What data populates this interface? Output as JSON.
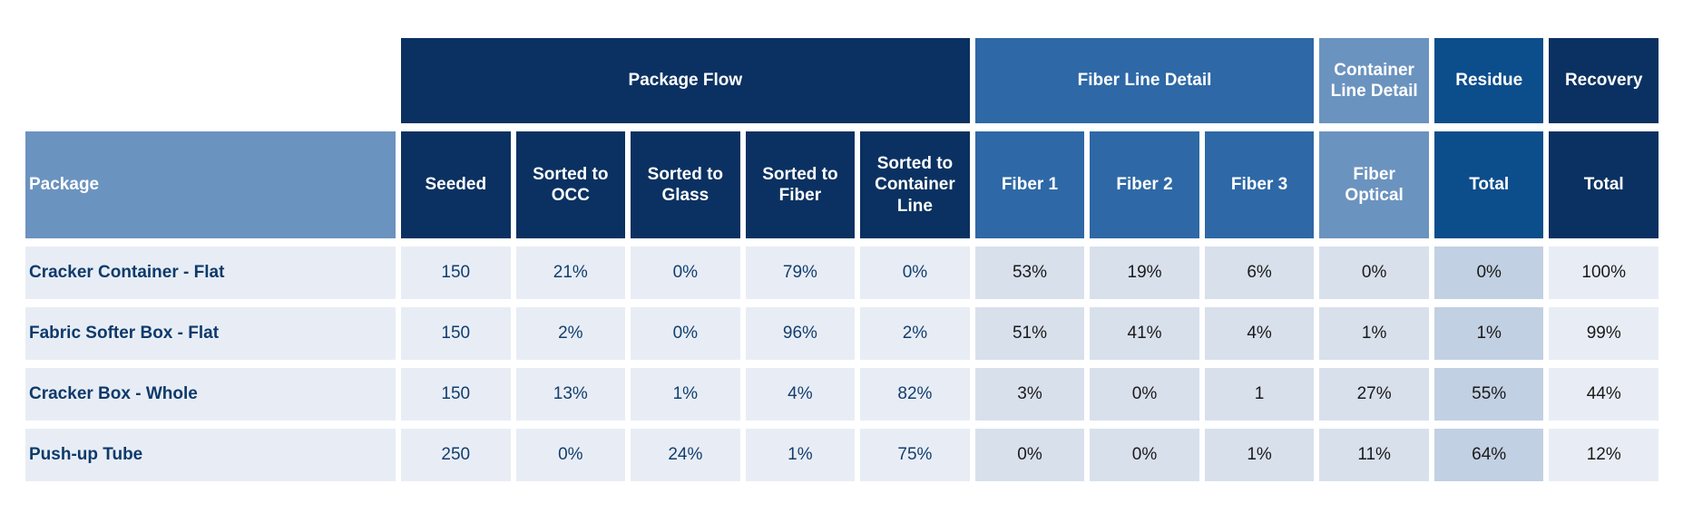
{
  "palette": {
    "dark_navy": "#0a3161",
    "medium_blue": "#2e68a6",
    "steel_blue": "#6b93bf",
    "residue_blue": "#0c4d8c",
    "row_light": "#e8edf5",
    "row_fiber": "#d8e0ec",
    "row_residue": "#c2d0e3",
    "text_navy": "#123e6e",
    "text_black": "#1a1a1a"
  },
  "chart_data": {
    "type": "table",
    "title": "",
    "groups": [
      {
        "label": "Package Flow",
        "span": 5
      },
      {
        "label": "Fiber Line Detail",
        "span": 3
      },
      {
        "label": "Container Line Detail",
        "span": 1
      },
      {
        "label": "Residue",
        "span": 1
      },
      {
        "label": "Recovery",
        "span": 1
      }
    ],
    "columns": [
      "Package",
      "Seeded",
      "Sorted to OCC",
      "Sorted to Glass",
      "Sorted to Fiber",
      "Sorted to Container Line",
      "Fiber 1",
      "Fiber 2",
      "Fiber 3",
      "Fiber Optical",
      "Total",
      "Total"
    ],
    "rows": [
      {
        "package": "Cracker Container - Flat",
        "values": [
          "150",
          "21%",
          "0%",
          "79%",
          "0%",
          "53%",
          "19%",
          "6%",
          "0%",
          "0%",
          "100%"
        ]
      },
      {
        "package": "Fabric Softer Box - Flat",
        "values": [
          "150",
          "2%",
          "0%",
          "96%",
          "2%",
          "51%",
          "41%",
          "4%",
          "1%",
          "1%",
          "99%"
        ]
      },
      {
        "package": "Cracker Box - Whole",
        "values": [
          "150",
          "13%",
          "1%",
          "4%",
          "82%",
          "3%",
          "0%",
          "1",
          "27%",
          "55%",
          "44%"
        ]
      },
      {
        "package": "Push-up Tube",
        "values": [
          "250",
          "0%",
          "24%",
          "1%",
          "75%",
          "0%",
          "0%",
          "1%",
          "11%",
          "64%",
          "12%"
        ]
      }
    ]
  }
}
